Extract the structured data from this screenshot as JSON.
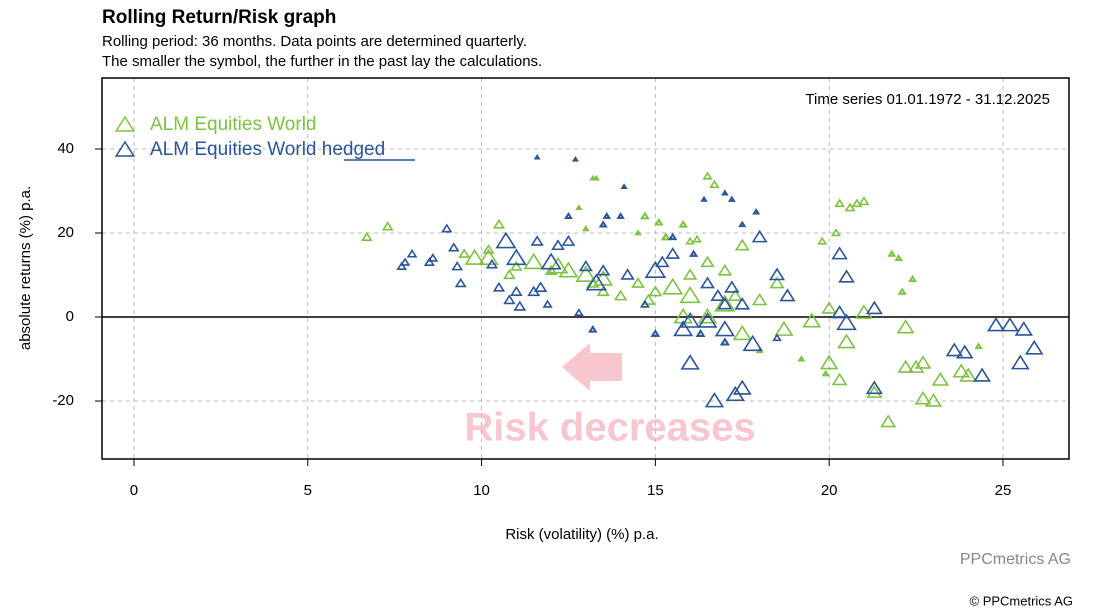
{
  "chart_data": {
    "type": "scatter",
    "title": "Rolling Return/Risk graph",
    "subtitle": [
      "Rolling period: 36 months. Data points are determined quarterly.",
      "The smaller the symbol, the further in the past lay the calculations."
    ],
    "annotation": "Time series 01.01.1972 - 31.12.2025",
    "arrow_label": "Risk decreases",
    "source": "PPCmetrics AG",
    "copyright": "© PPCmetrics AG",
    "xlabel": "Risk (volatility) (%) p.a.",
    "ylabel": "absolute returns (%) p.a.",
    "xlim": [
      -0.92,
      26.9
    ],
    "ylim": [
      -33.8,
      56.9
    ],
    "xticks": [
      0,
      5,
      10,
      15,
      20,
      25
    ],
    "yticks": [
      -20,
      0,
      20,
      40
    ],
    "grid": true,
    "legend": "upper left",
    "series": [
      {
        "name": "ALM Equities World",
        "color": "#7dc242",
        "x": [
          13.2,
          13.3,
          12.8,
          14.5,
          13,
          18.0,
          19.2,
          19.9,
          24.3,
          22.0,
          21.8,
          22.4,
          22.1,
          15.1,
          15.8,
          14.7,
          15.3,
          16.0,
          16.2,
          19.8,
          20.2,
          16.5,
          16.7,
          20.3,
          20.8,
          20.6,
          21.0,
          6.7,
          7.3,
          9.5,
          10.2,
          10.5,
          11,
          10.8,
          12,
          13.2,
          13.5,
          14,
          14.5,
          15,
          14.8,
          16,
          16.5,
          17,
          17.5,
          17.3,
          18.5,
          18,
          20,
          20.3,
          21.3,
          21.7,
          22.2,
          22.5,
          22.7,
          22.7,
          23,
          23.2,
          23.8,
          24,
          22.2,
          21,
          20,
          20.5,
          19.5,
          18.7,
          17.5,
          16.5,
          15.8,
          13.5,
          12.5,
          9.8,
          10.2,
          11.5,
          12.2,
          13,
          15.5,
          16,
          17
        ],
        "values": [
          33,
          33,
          26,
          20,
          21,
          -8,
          -10,
          -13.5,
          -7,
          14,
          15,
          9,
          6,
          22.5,
          22,
          24,
          19,
          18,
          18.5,
          18,
          20,
          33.5,
          31.5,
          27,
          27,
          26,
          27.5,
          19,
          21.5,
          15,
          16,
          22,
          12,
          10,
          11,
          8,
          6,
          5,
          8,
          6,
          4,
          10,
          13,
          11,
          17,
          5,
          8,
          4,
          2,
          -15,
          -18,
          -25,
          -12,
          -12,
          -11,
          -19.5,
          -20,
          -15,
          -13,
          -14,
          -2.5,
          1,
          -11,
          -6,
          -1,
          -3,
          -4,
          0,
          0,
          9,
          11,
          14,
          14,
          13,
          12,
          10,
          7,
          5,
          3
        ]
      },
      {
        "name": "ALM Equities World hedged",
        "color": "#2a5599",
        "x": [
          11.6,
          12.7,
          14.1,
          16.4,
          17.0,
          17.2,
          17.9,
          17.5,
          14.0,
          13.6,
          12.5,
          13.5,
          16.1,
          15.5,
          13.2,
          15.0,
          16.3,
          17.0,
          18.5,
          12.8,
          14.7,
          11.9,
          7.8,
          7.7,
          8.0,
          8.6,
          8.5,
          9.0,
          9.2,
          9.3,
          9.4,
          10.3,
          10.5,
          10.8,
          11,
          11.1,
          11.5,
          11.6,
          11.7,
          12.2,
          12.5,
          13.0,
          13.5,
          14.2,
          15.2,
          15.5,
          16.5,
          16.8,
          17.0,
          17.2,
          17.5,
          18,
          18.5,
          18.8,
          20.3,
          20.5,
          20.3,
          21.3,
          21.3,
          23.6,
          23.9,
          24.4,
          24.8,
          25.2,
          25.6,
          25.9,
          25.5,
          17.5,
          17.3,
          16.7,
          16.0,
          16.5,
          16.0,
          15.8,
          17.0,
          17.8,
          20.5,
          11.0,
          10.7,
          12.0,
          13.3,
          15.0
        ],
        "values": [
          38,
          37.5,
          31,
          28,
          29.5,
          28,
          25,
          22,
          24,
          24,
          24,
          22,
          15,
          19,
          -3,
          -4,
          -4,
          -6,
          -5,
          1,
          3,
          3,
          13,
          12,
          15,
          14,
          13,
          21,
          16.5,
          12,
          8,
          12.5,
          7,
          4,
          6,
          2.5,
          6,
          18,
          7,
          17,
          18,
          12,
          11,
          10,
          13,
          15,
          8,
          5,
          3,
          7,
          3,
          19,
          10,
          5,
          15,
          9.5,
          1,
          2,
          -17,
          -8,
          -8.5,
          -14,
          -2,
          -2,
          -3,
          -7.5,
          -11,
          -17,
          -18.5,
          -20,
          -11,
          -1,
          -1,
          -3,
          -3,
          -6.5,
          -1.5,
          14,
          18,
          13,
          8,
          11
        ]
      }
    ]
  }
}
